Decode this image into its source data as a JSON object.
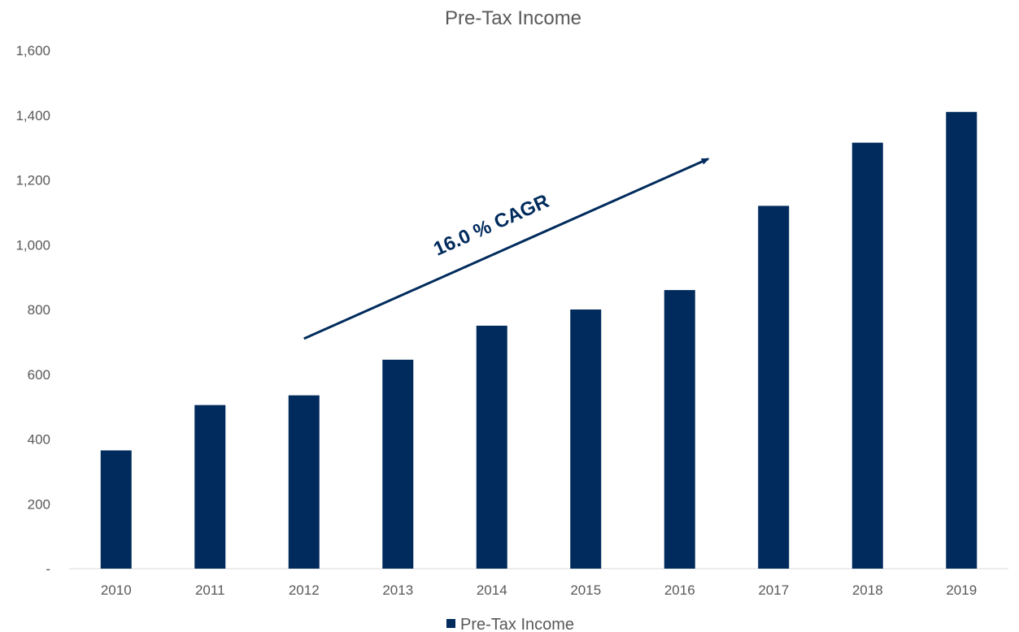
{
  "chart_data": {
    "type": "bar",
    "title": "Pre-Tax Income",
    "categories": [
      "2010",
      "2011",
      "2012",
      "2013",
      "2014",
      "2015",
      "2016",
      "2017",
      "2018",
      "2019"
    ],
    "series": [
      {
        "name": "Pre-Tax Income",
        "color": "#002b5c",
        "values": [
          365,
          505,
          535,
          645,
          750,
          800,
          860,
          1120,
          1315,
          1410
        ]
      }
    ],
    "ylim": [
      0,
      1600
    ],
    "yticks": [
      "-",
      "200",
      "400",
      "600",
      "800",
      "1,000",
      "1,200",
      "1,400",
      "1,600"
    ],
    "ytick_values": [
      0,
      200,
      400,
      600,
      800,
      1000,
      1200,
      1400,
      1600
    ],
    "xlabel": "",
    "ylabel": "",
    "grid": false,
    "legend_position": "bottom-center",
    "annotation": {
      "text": "16.0 % CAGR",
      "from": {
        "category": "2012",
        "value": 710
      },
      "to": {
        "category": "2016",
        "value": 1265
      }
    }
  }
}
